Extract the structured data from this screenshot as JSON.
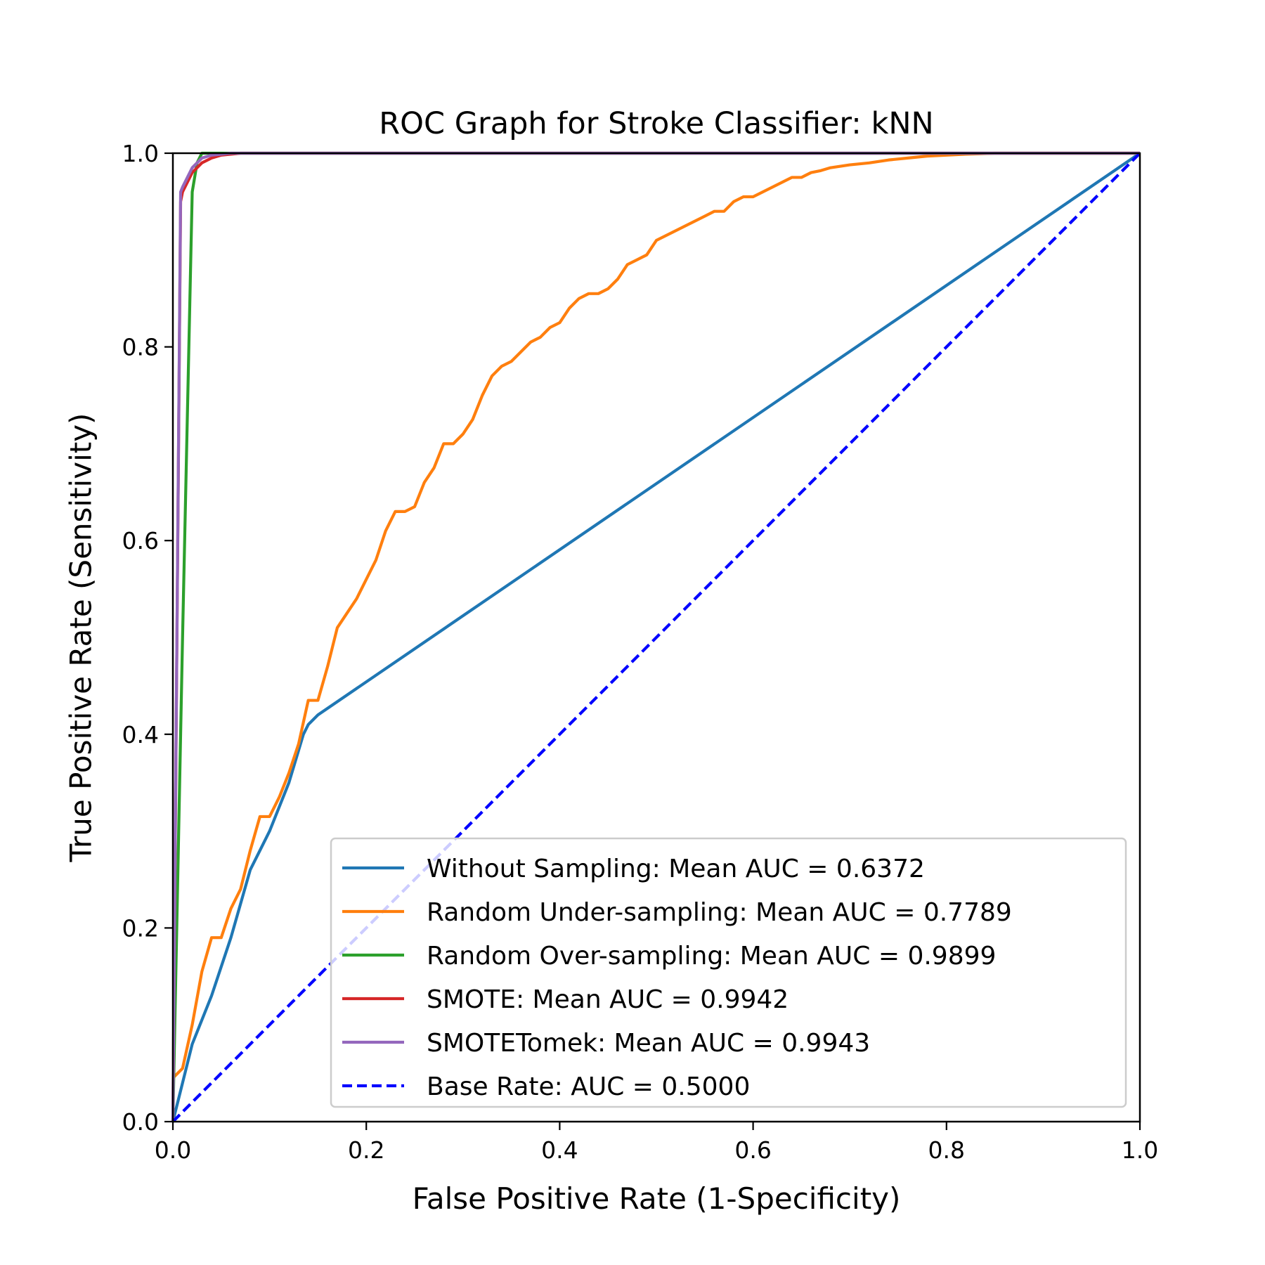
{
  "chart_data": {
    "type": "line",
    "title": "ROC Graph for Stroke Classifier: kNN",
    "xlabel": "False Positive Rate (1-Specificity)",
    "ylabel": "True Positive Rate (Sensitivity)",
    "xlim": [
      0.0,
      1.0
    ],
    "ylim": [
      0.0,
      1.0
    ],
    "xticks": [
      "0.0",
      "0.2",
      "0.4",
      "0.6",
      "0.8",
      "1.0"
    ],
    "yticks": [
      "0.0",
      "0.2",
      "0.4",
      "0.6",
      "0.8",
      "1.0"
    ],
    "grid": false,
    "legend_position": "lower-right",
    "series": [
      {
        "name": "Without Sampling: Mean AUC = 0.6372",
        "color": "#1f77b4",
        "dash": "solid",
        "x": [
          0.0,
          0.01,
          0.02,
          0.04,
          0.06,
          0.08,
          0.09,
          0.1,
          0.12,
          0.135,
          0.14,
          0.15,
          1.0
        ],
        "y": [
          0.0,
          0.04,
          0.08,
          0.13,
          0.19,
          0.26,
          0.28,
          0.3,
          0.35,
          0.4,
          0.41,
          0.42,
          1.0
        ]
      },
      {
        "name": "Random Under-sampling: Mean AUC = 0.7789",
        "color": "#ff7f0e",
        "dash": "solid",
        "x": [
          0.0,
          0.01,
          0.02,
          0.03,
          0.04,
          0.05,
          0.06,
          0.07,
          0.08,
          0.09,
          0.1,
          0.11,
          0.12,
          0.13,
          0.14,
          0.15,
          0.16,
          0.17,
          0.18,
          0.19,
          0.2,
          0.21,
          0.22,
          0.23,
          0.24,
          0.25,
          0.26,
          0.27,
          0.28,
          0.29,
          0.3,
          0.31,
          0.32,
          0.33,
          0.34,
          0.35,
          0.36,
          0.37,
          0.38,
          0.39,
          0.4,
          0.41,
          0.42,
          0.43,
          0.44,
          0.45,
          0.46,
          0.47,
          0.48,
          0.49,
          0.5,
          0.51,
          0.52,
          0.53,
          0.54,
          0.55,
          0.56,
          0.57,
          0.58,
          0.59,
          0.6,
          0.61,
          0.62,
          0.63,
          0.64,
          0.65,
          0.66,
          0.67,
          0.68,
          0.7,
          0.72,
          0.74,
          0.76,
          0.78,
          0.8,
          0.82,
          0.85,
          0.9,
          1.0
        ],
        "y": [
          0.045,
          0.055,
          0.1,
          0.155,
          0.19,
          0.19,
          0.22,
          0.24,
          0.28,
          0.315,
          0.315,
          0.335,
          0.36,
          0.39,
          0.435,
          0.435,
          0.47,
          0.51,
          0.525,
          0.54,
          0.56,
          0.58,
          0.61,
          0.63,
          0.63,
          0.635,
          0.66,
          0.675,
          0.7,
          0.7,
          0.71,
          0.725,
          0.75,
          0.77,
          0.78,
          0.785,
          0.795,
          0.805,
          0.81,
          0.82,
          0.825,
          0.84,
          0.85,
          0.855,
          0.855,
          0.86,
          0.87,
          0.885,
          0.89,
          0.895,
          0.91,
          0.915,
          0.92,
          0.925,
          0.93,
          0.935,
          0.94,
          0.94,
          0.95,
          0.955,
          0.955,
          0.96,
          0.965,
          0.97,
          0.975,
          0.975,
          0.98,
          0.982,
          0.985,
          0.988,
          0.99,
          0.993,
          0.995,
          0.997,
          0.998,
          0.999,
          1.0,
          1.0,
          1.0
        ]
      },
      {
        "name": "Random Over-sampling: Mean AUC = 0.9899",
        "color": "#2ca02c",
        "dash": "solid",
        "x": [
          0.0,
          0.01,
          0.02,
          0.025,
          0.03,
          0.04,
          1.0
        ],
        "y": [
          0.0,
          0.5,
          0.96,
          0.99,
          1.0,
          1.0,
          1.0
        ]
      },
      {
        "name": "SMOTE: Mean AUC = 0.9942",
        "color": "#d62728",
        "dash": "solid",
        "x": [
          0.0,
          0.008,
          0.01,
          0.02,
          0.03,
          0.04,
          0.05,
          0.07,
          0.1,
          1.0
        ],
        "y": [
          0.0,
          0.95,
          0.96,
          0.98,
          0.99,
          0.995,
          0.998,
          1.0,
          1.0,
          1.0
        ]
      },
      {
        "name": "SMOTETomek: Mean AUC = 0.9943",
        "color": "#9467bd",
        "dash": "solid",
        "x": [
          0.0,
          0.008,
          0.01,
          0.02,
          0.03,
          0.04,
          0.06,
          0.08,
          1.0
        ],
        "y": [
          0.0,
          0.96,
          0.965,
          0.985,
          0.995,
          0.998,
          1.0,
          1.0,
          1.0
        ]
      },
      {
        "name": "Base Rate: AUC = 0.5000",
        "color": "#0000ff",
        "dash": "dashed",
        "x": [
          0.0,
          1.0
        ],
        "y": [
          0.0,
          1.0
        ]
      }
    ]
  }
}
